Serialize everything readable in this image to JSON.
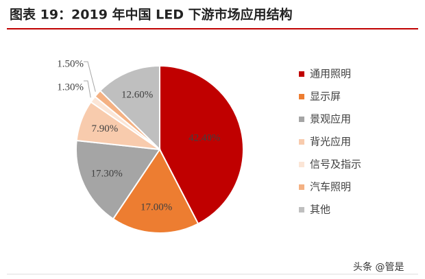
{
  "chart_data": {
    "type": "pie",
    "title": "图表 19：2019 年中国 LED 下游市场应用结构",
    "categories": [
      "通用照明",
      "显示屏",
      "景观应用",
      "背光应用",
      "信号及指示",
      "汽车照明",
      "其他"
    ],
    "values": [
      42.4,
      17.0,
      17.3,
      7.9,
      1.3,
      1.5,
      12.6
    ],
    "value_labels": [
      "42.40%",
      "17.00%",
      "17.30%",
      "7.90%",
      "1.30%",
      "1.50%",
      "12.60%"
    ],
    "colors": [
      "#c00000",
      "#ed7d31",
      "#a5a5a5",
      "#f8cbad",
      "#fbe5d6",
      "#f4b183",
      "#bfbfbf"
    ],
    "legend": "right",
    "watermark": "头条 @管是"
  }
}
